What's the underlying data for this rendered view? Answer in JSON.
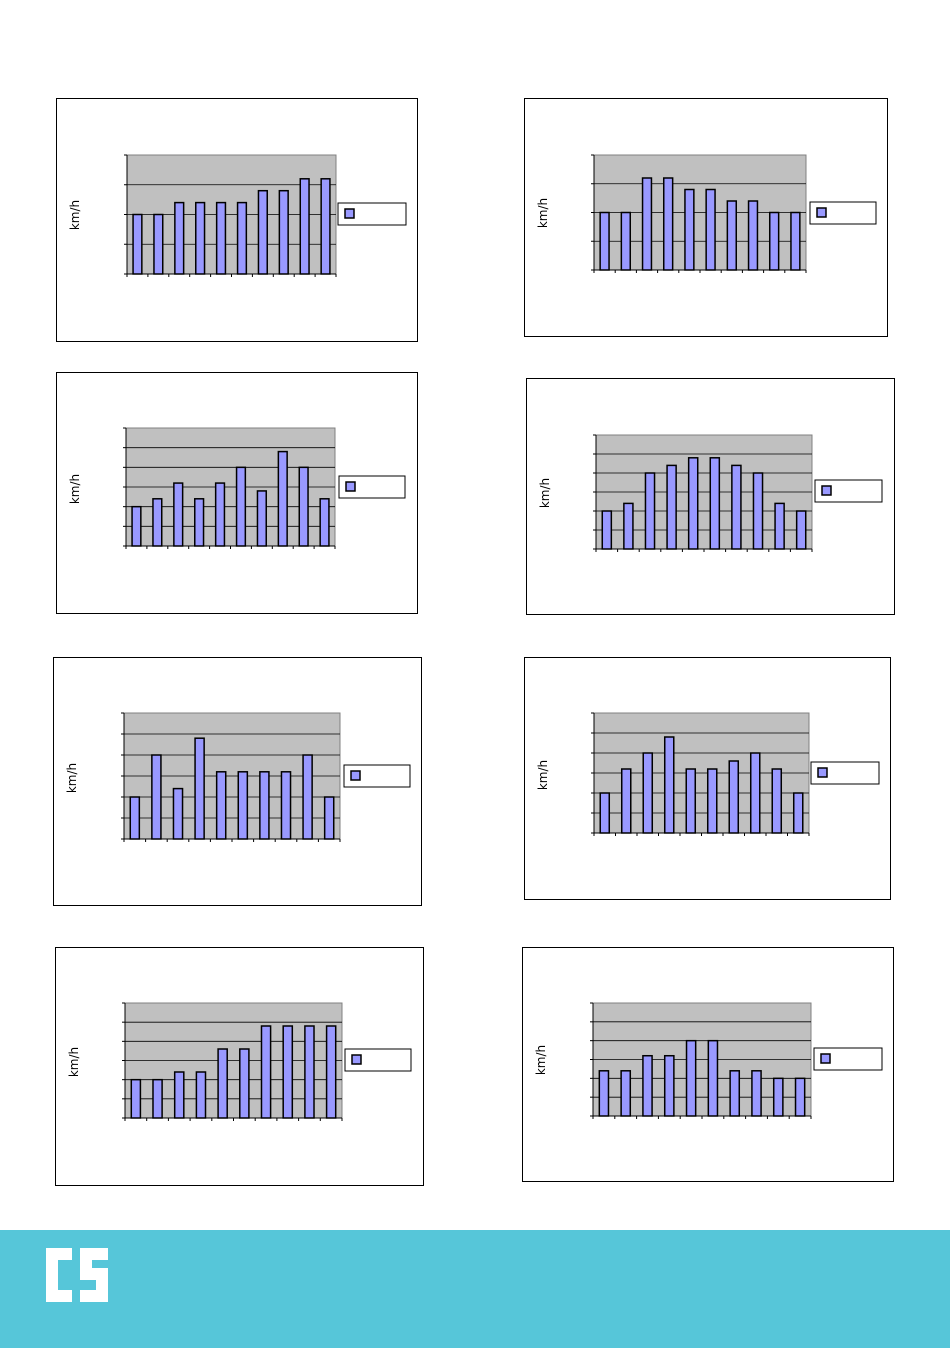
{
  "colors": {
    "plot_bg": "#c0c0c0",
    "bar_fill": "#9999ff",
    "bar_stroke": "#000000",
    "footer_bg": "#56c6d9",
    "logo": "#ffffff"
  },
  "footer": {
    "logo_icon": "cs-logo-icon"
  },
  "chart_data": [
    {
      "type": "bar",
      "ylabel": "km/h",
      "ylim": [
        0,
        100
      ],
      "grid": true,
      "legend": "right",
      "values": [
        50,
        50,
        60,
        60,
        60,
        60,
        70,
        70,
        80,
        80
      ]
    },
    {
      "type": "bar",
      "ylabel": "km/h",
      "ylim": [
        0,
        100
      ],
      "grid": true,
      "legend": "right",
      "values": [
        50,
        50,
        80,
        80,
        70,
        70,
        60,
        60,
        50,
        50
      ]
    },
    {
      "type": "bar",
      "ylabel": "km/h",
      "ylim": [
        0,
        150
      ],
      "grid": true,
      "legend": "right",
      "values": [
        50,
        60,
        80,
        60,
        80,
        100,
        70,
        120,
        100,
        60
      ]
    },
    {
      "type": "bar",
      "ylabel": "km/h",
      "ylim": [
        0,
        150
      ],
      "grid": true,
      "legend": "right",
      "values": [
        50,
        60,
        100,
        110,
        120,
        120,
        110,
        100,
        60,
        50
      ]
    },
    {
      "type": "bar",
      "ylabel": "km/h",
      "ylim": [
        0,
        150
      ],
      "grid": true,
      "legend": "right",
      "values": [
        50,
        100,
        60,
        120,
        80,
        80,
        80,
        80,
        100,
        50
      ]
    },
    {
      "type": "bar",
      "ylabel": "km/h",
      "ylim": [
        0,
        150
      ],
      "grid": true,
      "legend": "right",
      "values": [
        50,
        80,
        100,
        120,
        80,
        80,
        90,
        100,
        80,
        50
      ]
    },
    {
      "type": "bar",
      "ylabel": "km/h",
      "ylim": [
        0,
        150
      ],
      "grid": true,
      "legend": "right",
      "values": [
        50,
        50,
        60,
        60,
        90,
        90,
        120,
        120,
        120,
        120
      ]
    },
    {
      "type": "bar",
      "ylabel": "km/h",
      "ylim": [
        0,
        150
      ],
      "grid": true,
      "legend": "right",
      "values": [
        60,
        60,
        80,
        80,
        100,
        100,
        60,
        60,
        50,
        50
      ]
    }
  ]
}
